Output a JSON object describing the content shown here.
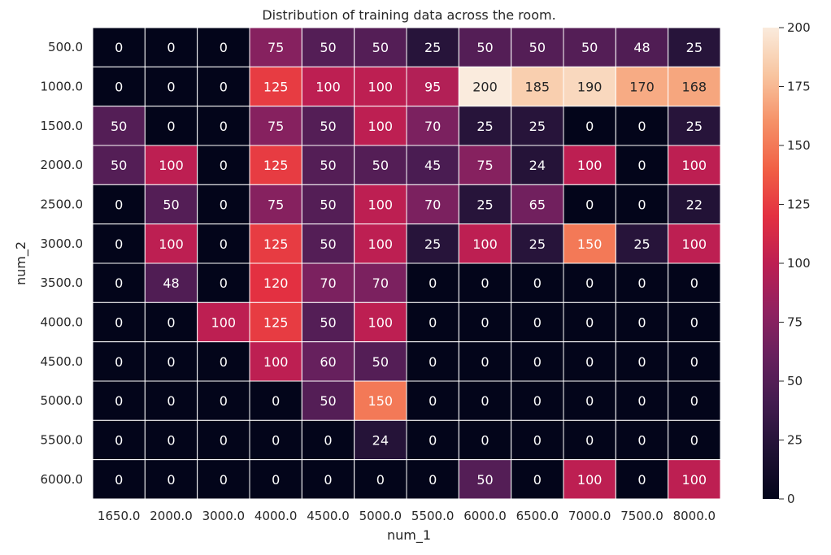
{
  "chart_data": {
    "type": "heatmap",
    "title": "Distribution of training data across the room.",
    "xlabel": "num_1",
    "ylabel": "num_2",
    "x_categories": [
      "1650.0",
      "2000.0",
      "3000.0",
      "4000.0",
      "4500.0",
      "5000.0",
      "5500.0",
      "6000.0",
      "6500.0",
      "7000.0",
      "7500.0",
      "8000.0"
    ],
    "y_categories": [
      "500.0",
      "1000.0",
      "1500.0",
      "2000.0",
      "2500.0",
      "3000.0",
      "3500.0",
      "4000.0",
      "4500.0",
      "5000.0",
      "5500.0",
      "6000.0"
    ],
    "values": [
      [
        0,
        0,
        0,
        75,
        50,
        50,
        25,
        50,
        50,
        50,
        48,
        25
      ],
      [
        0,
        0,
        0,
        125,
        100,
        100,
        95,
        200,
        185,
        190,
        170,
        168
      ],
      [
        50,
        0,
        0,
        75,
        50,
        100,
        70,
        25,
        25,
        0,
        0,
        25
      ],
      [
        50,
        100,
        0,
        125,
        50,
        50,
        45,
        75,
        24,
        100,
        0,
        100
      ],
      [
        0,
        50,
        0,
        75,
        50,
        100,
        70,
        25,
        65,
        0,
        0,
        22
      ],
      [
        0,
        100,
        0,
        125,
        50,
        100,
        25,
        100,
        25,
        150,
        25,
        100
      ],
      [
        0,
        48,
        0,
        120,
        70,
        70,
        0,
        0,
        0,
        0,
        0,
        0
      ],
      [
        0,
        0,
        100,
        125,
        50,
        100,
        0,
        0,
        0,
        0,
        0,
        0
      ],
      [
        0,
        0,
        0,
        100,
        60,
        50,
        0,
        0,
        0,
        0,
        0,
        0
      ],
      [
        0,
        0,
        0,
        0,
        50,
        150,
        0,
        0,
        0,
        0,
        0,
        0
      ],
      [
        0,
        0,
        0,
        0,
        0,
        24,
        0,
        0,
        0,
        0,
        0,
        0
      ],
      [
        0,
        0,
        0,
        0,
        0,
        0,
        0,
        50,
        0,
        100,
        0,
        100
      ]
    ],
    "colorbar": {
      "min": 0,
      "max": 200,
      "ticks": [
        0,
        25,
        50,
        75,
        100,
        125,
        150,
        175,
        200
      ],
      "colormap": "rocket"
    },
    "annotations": true,
    "grid": false
  }
}
